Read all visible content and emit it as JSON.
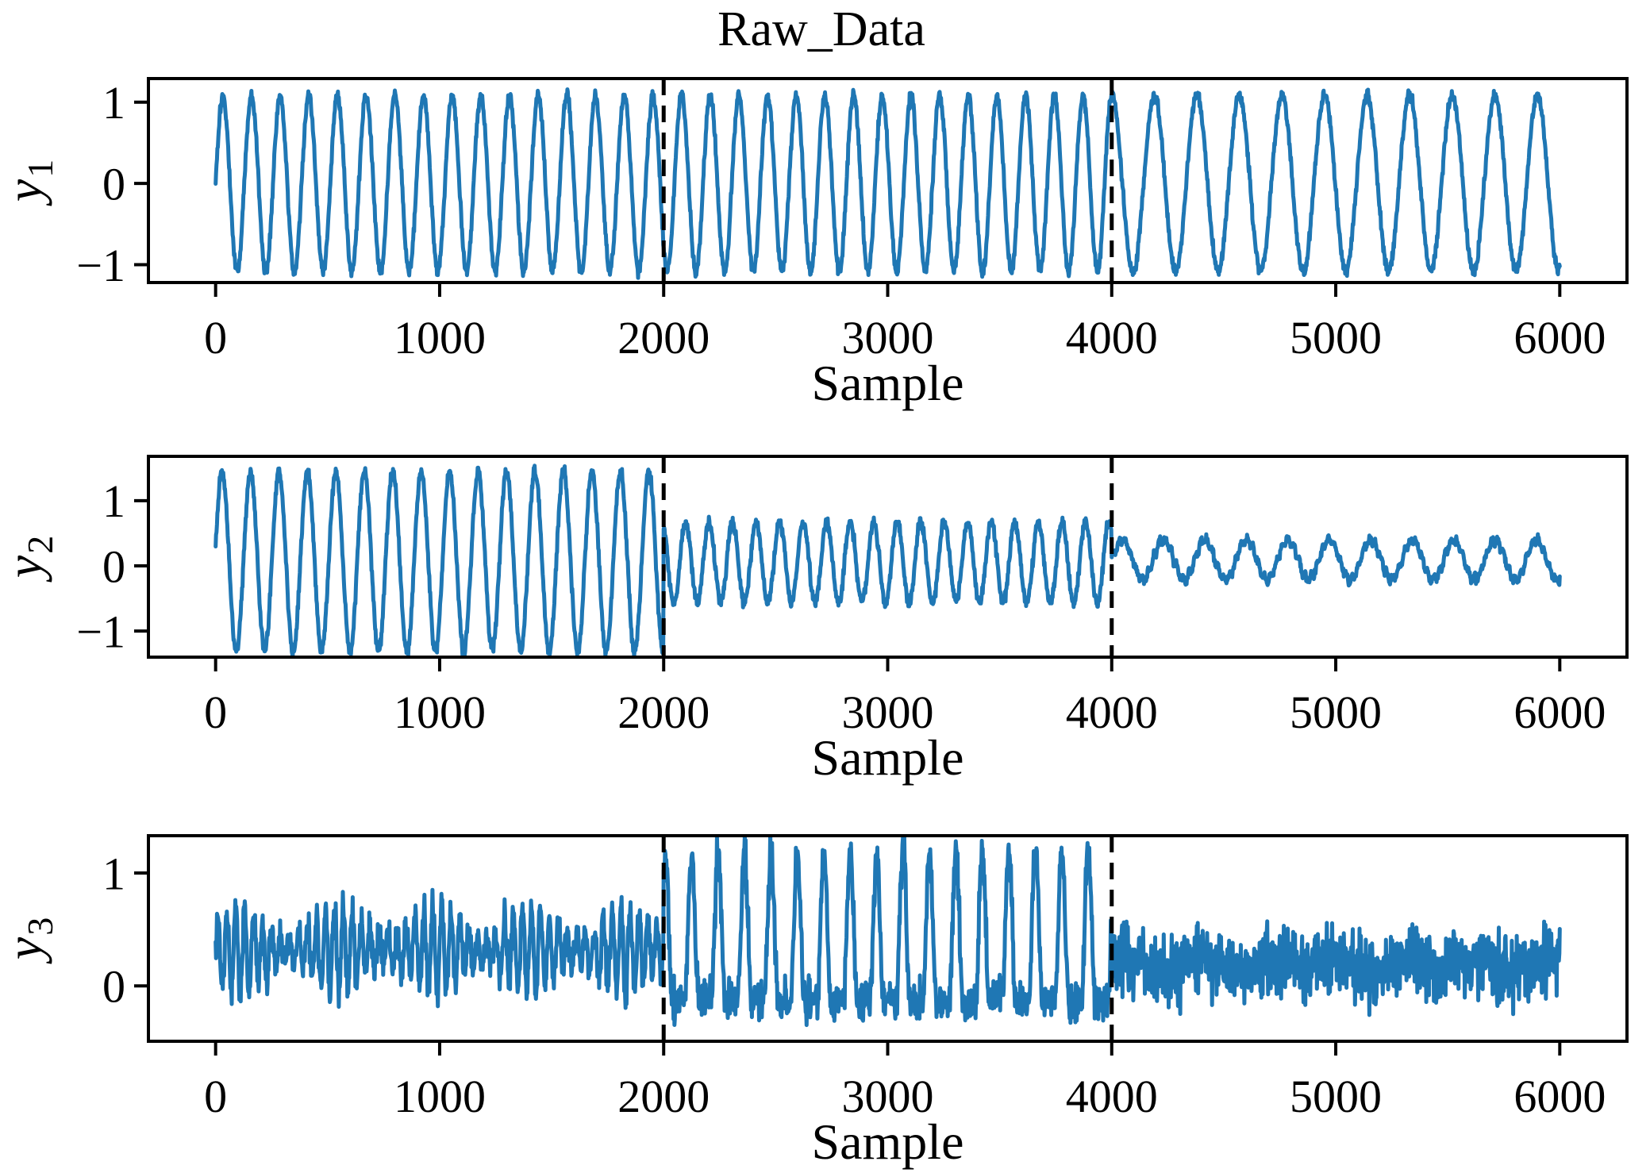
{
  "figure": {
    "title": "Raw_Data",
    "background_color": "#ffffff",
    "text_color": "#000000"
  },
  "chart_data": [
    {
      "type": "line",
      "title": "Raw_Data",
      "xlabel": "Sample",
      "ylabel": "y_1",
      "line_color": "#1f77b4",
      "axis_color": "#000000",
      "xlim": [
        -300,
        6300
      ],
      "ylim": [
        -1.22,
        1.29
      ],
      "grid": false,
      "legend": null,
      "xticks": [
        {
          "v": 0,
          "label": "0"
        },
        {
          "v": 1000,
          "label": "1000"
        },
        {
          "v": 2000,
          "label": "2000"
        },
        {
          "v": 3000,
          "label": "3000"
        },
        {
          "v": 4000,
          "label": "4000"
        },
        {
          "v": 5000,
          "label": "5000"
        },
        {
          "v": 6000,
          "label": "6000"
        }
      ],
      "yticks": [
        {
          "v": 1,
          "label": "1"
        },
        {
          "v": 0,
          "label": "0"
        },
        {
          "v": -1,
          "label": "−1"
        }
      ],
      "vlines": [
        {
          "x": 2000,
          "style": "dashed",
          "color": "#000000"
        },
        {
          "x": 4000,
          "style": "dashed",
          "color": "#000000"
        }
      ],
      "x_range": [
        0,
        6000
      ],
      "segments": [
        {
          "start": 0,
          "end": 2000,
          "kind": "sine",
          "mean": 0,
          "amplitude": 1.08,
          "period": 128,
          "phase": 0,
          "noise": 0.035
        },
        {
          "start": 2000,
          "end": 4000,
          "kind": "sine",
          "mean": 0,
          "amplitude": 1.08,
          "period": 128,
          "phase": 3.93,
          "noise": 0.035
        },
        {
          "start": 4000,
          "end": 6000,
          "kind": "sine",
          "mean": 0,
          "amplitude": 1.08,
          "period": 190,
          "phase": 1.57,
          "noise": 0.035
        }
      ]
    },
    {
      "type": "line",
      "title": "",
      "xlabel": "Sample",
      "ylabel": "y_2",
      "line_color": "#1f77b4",
      "axis_color": "#000000",
      "xlim": [
        -300,
        6300
      ],
      "ylim": [
        -1.4,
        1.68
      ],
      "grid": false,
      "legend": null,
      "xticks": [
        {
          "v": 0,
          "label": "0"
        },
        {
          "v": 1000,
          "label": "1000"
        },
        {
          "v": 2000,
          "label": "2000"
        },
        {
          "v": 3000,
          "label": "3000"
        },
        {
          "v": 4000,
          "label": "4000"
        },
        {
          "v": 5000,
          "label": "5000"
        },
        {
          "v": 6000,
          "label": "6000"
        }
      ],
      "yticks": [
        {
          "v": 1,
          "label": "1"
        },
        {
          "v": 0,
          "label": "0"
        },
        {
          "v": -1,
          "label": "−1"
        }
      ],
      "vlines": [
        {
          "x": 2000,
          "style": "dashed",
          "color": "#000000"
        },
        {
          "x": 4000,
          "style": "dashed",
          "color": "#000000"
        }
      ],
      "x_range": [
        0,
        6000
      ],
      "segments": [
        {
          "start": 0,
          "end": 2000,
          "kind": "sine",
          "mean": 0.07,
          "amplitude": 1.38,
          "period": 127,
          "phase": 0.15,
          "noise": 0.045
        },
        {
          "start": 2000,
          "end": 4000,
          "kind": "sine",
          "mean": 0.05,
          "amplitude": 0.62,
          "period": 105,
          "phase": 2.0,
          "noise": 0.045
        },
        {
          "start": 4000,
          "end": 6000,
          "kind": "sine",
          "mean": 0.09,
          "amplitude": 0.3,
          "period": 185,
          "phase": 0,
          "noise": 0.03,
          "ripple_amplitude": 0.05,
          "ripple_period": 26
        }
      ]
    },
    {
      "type": "line",
      "title": "",
      "xlabel": "Sample",
      "ylabel": "y_3",
      "line_color": "#1f77b4",
      "axis_color": "#000000",
      "xlim": [
        -300,
        6300
      ],
      "ylim": [
        -0.49,
        1.33
      ],
      "grid": false,
      "legend": null,
      "xticks": [
        {
          "v": 0,
          "label": "0"
        },
        {
          "v": 1000,
          "label": "1000"
        },
        {
          "v": 2000,
          "label": "2000"
        },
        {
          "v": 3000,
          "label": "3000"
        },
        {
          "v": 4000,
          "label": "4000"
        },
        {
          "v": 5000,
          "label": "5000"
        },
        {
          "v": 6000,
          "label": "6000"
        }
      ],
      "yticks": [
        {
          "v": 1,
          "label": "1"
        },
        {
          "v": 0,
          "label": "0"
        }
      ],
      "vlines": [
        {
          "x": 2000,
          "style": "dashed",
          "color": "#000000"
        },
        {
          "x": 4000,
          "style": "dashed",
          "color": "#000000"
        }
      ],
      "x_range": [
        0,
        6000
      ],
      "segments": [
        {
          "start": 0,
          "end": 2000,
          "kind": "sine_mod",
          "mean": 0.32,
          "amplitude": 0.26,
          "period": 40,
          "phase": 0,
          "mod_amplitude": 0.13,
          "mod_period": 430,
          "noise": 0.07
        },
        {
          "start": 2000,
          "end": 4000,
          "kind": "peaks",
          "base": -0.12,
          "height": 1.32,
          "period": 118,
          "phase": 1.2,
          "exponent": 1.7,
          "noise": 0.085
        },
        {
          "start": 4000,
          "end": 6000,
          "kind": "noise",
          "mean": 0.18,
          "noise": 0.15,
          "wobble_amplitude": 0.06,
          "wobble_period": 310
        }
      ]
    }
  ]
}
